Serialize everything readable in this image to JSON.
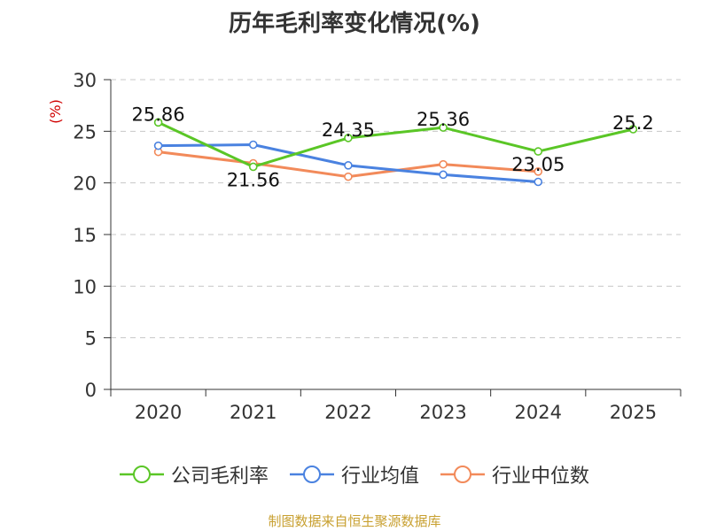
{
  "chart_data": {
    "type": "line",
    "title": "历年毛利率变化情况(%)",
    "ylabel": "(%)",
    "xlabel": "",
    "categories": [
      "2020",
      "2021",
      "2022",
      "2023",
      "2024",
      "2025"
    ],
    "ylim": [
      0,
      30
    ],
    "yticks": [
      0,
      5,
      10,
      15,
      20,
      25,
      30
    ],
    "grid": true,
    "legend": "bottom-center",
    "series": [
      {
        "name": "公司毛利率",
        "color": "#5ac626",
        "values": [
          25.86,
          21.56,
          24.35,
          25.36,
          23.05,
          25.2
        ],
        "labels": [
          "25.86",
          "21.56",
          "24.35",
          "25.36",
          "23.05",
          "25.2"
        ]
      },
      {
        "name": "行业均值",
        "color": "#4a82e0",
        "values": [
          23.6,
          23.7,
          21.7,
          20.8,
          20.1,
          null
        ]
      },
      {
        "name": "行业中位数",
        "color": "#f28a5a",
        "values": [
          23.0,
          21.9,
          20.6,
          21.8,
          21.1,
          null
        ]
      }
    ]
  },
  "footer": {
    "source": "制图数据来自恒生聚源数据库"
  }
}
